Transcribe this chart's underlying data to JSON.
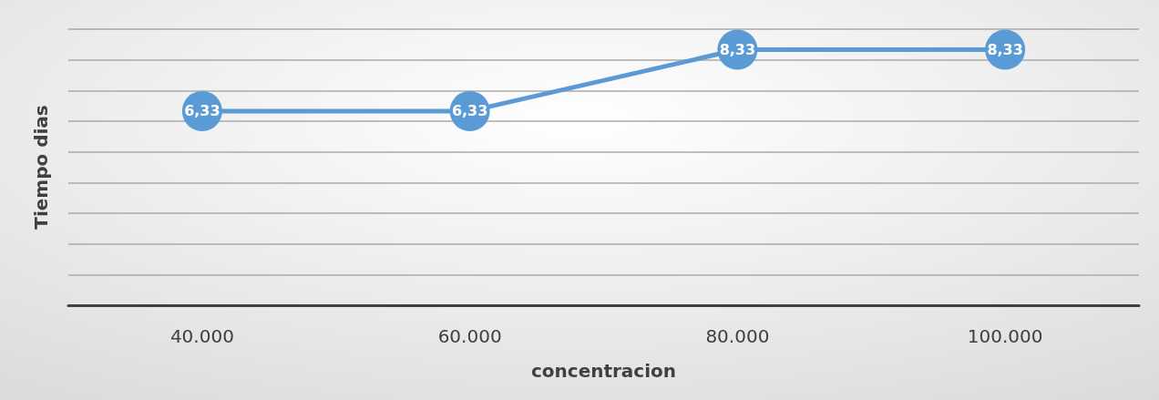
{
  "chart_data": {
    "type": "line",
    "xlabel": "concentracion",
    "ylabel": "Tiempo dias",
    "categories": [
      "40.000",
      "60.000",
      "80.000",
      "100.000"
    ],
    "series": [
      {
        "color": "#5b9bd5",
        "values": [
          6.33,
          6.33,
          8.33,
          8.33
        ],
        "value_labels": [
          "6,33",
          "6,33",
          "8,33",
          "8,33"
        ]
      }
    ],
    "ylim": [
      0,
      9
    ],
    "yticks": [
      {
        "value": 0,
        "label": null
      },
      {
        "value": 1,
        "label": null
      },
      {
        "value": 2,
        "label": null
      },
      {
        "value": 3,
        "label": null
      },
      {
        "value": 4,
        "label": null
      },
      {
        "value": 5,
        "label": null
      },
      {
        "value": 6,
        "label": null
      },
      {
        "value": 7,
        "label": null
      },
      {
        "value": 8,
        "label": null
      },
      {
        "value": 9,
        "label": null
      }
    ],
    "tick_labels": "x",
    "grid": "y",
    "marker": "circle",
    "line_style": "solid"
  }
}
